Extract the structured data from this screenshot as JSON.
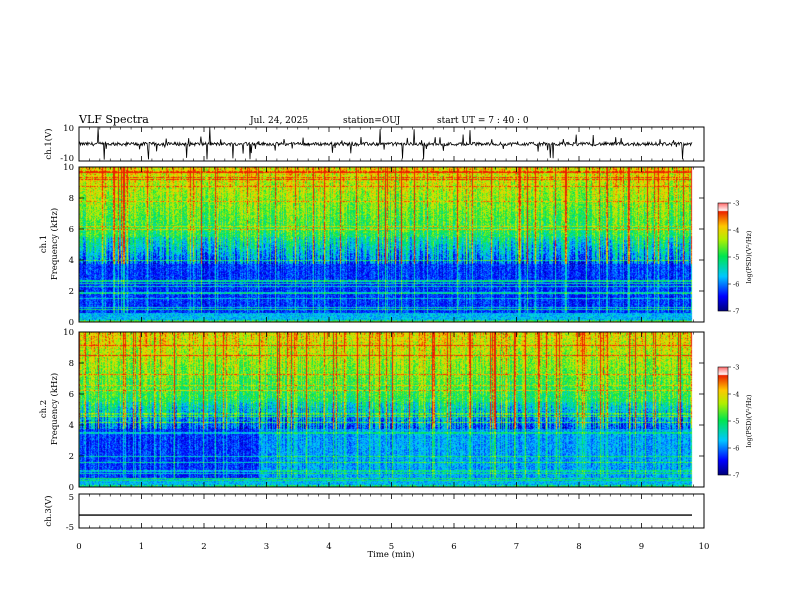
{
  "header": {
    "title": "VLF Spectra",
    "date": "Jul. 24, 2025",
    "station": "station=OUJ",
    "start": "start UT =  7 : 40 : 0"
  },
  "chart_data": [
    {
      "type": "line",
      "name": "ch1-waveform",
      "ylabel": "ch.1(V)",
      "ylim": [
        -10,
        10
      ],
      "yticks": [
        "10",
        "-10"
      ],
      "xlim": [
        0,
        10
      ],
      "baseline": 0,
      "noise_amplitude": 2
    },
    {
      "type": "heatmap",
      "name": "ch1-spectrogram",
      "ylabel": "ch.1",
      "ylabel2": "Frequency (kHz)",
      "ylim": [
        0,
        10
      ],
      "yticks": [
        "0",
        "2",
        "4",
        "6",
        "8",
        "10"
      ],
      "xlim": [
        0,
        10
      ],
      "colorbar": {
        "label": "log(PSD)(V²/Hz)",
        "ticks": [
          "-3",
          "-4",
          "-5",
          "-6",
          "-7"
        ],
        "range": [
          -7,
          -3
        ],
        "colors": [
          "#000000",
          "#0000ff",
          "#00ffff",
          "#00ff00",
          "#ffff00",
          "#ff0000",
          "#ffffff"
        ]
      }
    },
    {
      "type": "heatmap",
      "name": "ch2-spectrogram",
      "ylabel": "ch.2",
      "ylabel2": "Frequency (kHz)",
      "ylim": [
        0,
        10
      ],
      "yticks": [
        "0",
        "2",
        "4",
        "6",
        "8",
        "10"
      ],
      "xlim": [
        0,
        10
      ],
      "colorbar": {
        "label": "log(PSD)(V²/Hz)",
        "ticks": [
          "-3",
          "-4",
          "-5",
          "-6",
          "-7"
        ],
        "range": [
          -7,
          -3
        ],
        "colors": [
          "#000000",
          "#0000ff",
          "#00ffff",
          "#00ff00",
          "#ffff00",
          "#ff0000",
          "#ffffff"
        ]
      }
    },
    {
      "type": "line",
      "name": "ch3-waveform",
      "ylabel": "ch.3(V)",
      "ylim": [
        -5,
        5
      ],
      "yticks": [
        "5",
        "-5"
      ],
      "xlim": [
        0,
        10
      ],
      "baseline": -1.2,
      "xlabel": "Time (min)",
      "xticks": [
        "0",
        "1",
        "2",
        "3",
        "4",
        "5",
        "6",
        "7",
        "8",
        "9",
        "10"
      ]
    }
  ]
}
